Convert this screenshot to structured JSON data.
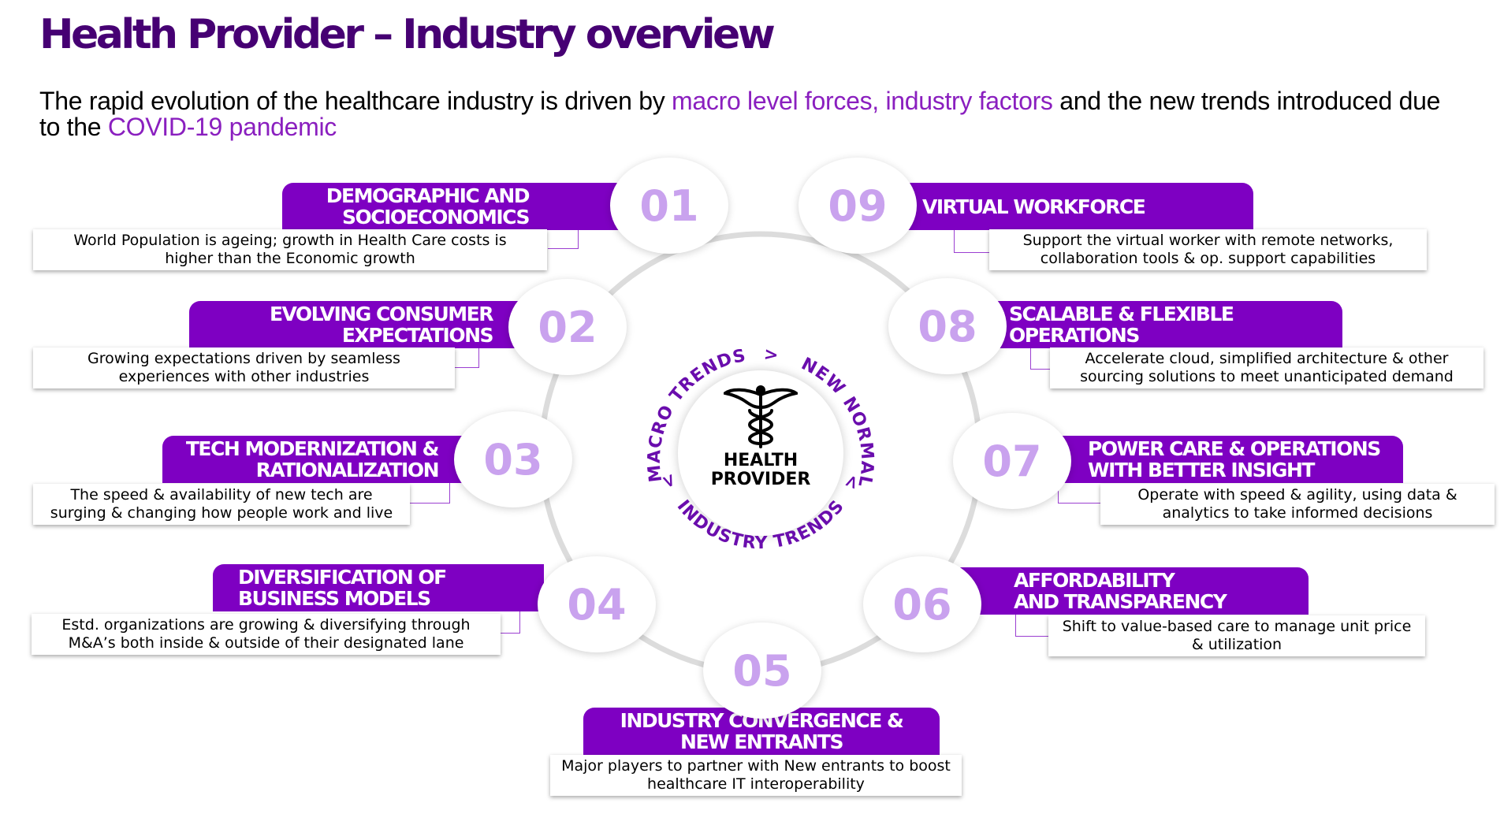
{
  "title": "Health Provider – Industry overview",
  "subtitle": {
    "part1": "The rapid evolution of the healthcare industry is driven by ",
    "hl1": "macro level forces, industry factors",
    "part2": " and the new trends introduced due to the ",
    "hl2": "COVID-19 pandemic"
  },
  "center": {
    "line1": "HEALTH",
    "line2": "PROVIDER",
    "arc_macro": "MACRO TRENDS",
    "arc_new": "NEW NORMAL TRENDS",
    "arc_industry": "INDUSTRY TRENDS",
    "arrow": ">"
  },
  "colors": {
    "brand": "#460073",
    "tab": "#7e00c2",
    "number": "#c9a2ee",
    "accent": "#8a1fbf"
  },
  "items": [
    {
      "num": "01",
      "title1": "DEMOGRAPHIC AND",
      "title2": "SOCIOECONOMICS",
      "desc1": "World Population is ageing; growth in Health Care costs is",
      "desc2": "higher than the Economic growth"
    },
    {
      "num": "02",
      "title1": "EVOLVING CONSUMER",
      "title2": "EXPECTATIONS",
      "desc1": "Growing expectations driven by seamless",
      "desc2": "experiences with other industries"
    },
    {
      "num": "03",
      "title1": "TECH MODERNIZATION &",
      "title2": "RATIONALIZATION",
      "desc1": "The speed & availability of new tech are",
      "desc2": "surging & changing how people work and live"
    },
    {
      "num": "04",
      "title1": "DIVERSIFICATION OF",
      "title2": "BUSINESS MODELS",
      "desc1": "Estd. organizations are growing & diversifying through",
      "desc2": "M&A’s both inside & outside of their designated lane"
    },
    {
      "num": "05",
      "title1": "INDUSTRY CONVERGENCE &",
      "title2": "NEW ENTRANTS",
      "desc1": "Major players to partner with New entrants to boost",
      "desc2": "healthcare IT interoperability"
    },
    {
      "num": "06",
      "title1": "AFFORDABILITY",
      "title2": "AND TRANSPARENCY",
      "desc1": "Shift to value-based care to manage unit price",
      "desc2": "& utilization"
    },
    {
      "num": "07",
      "title1": "POWER CARE & OPERATIONS",
      "title2": "WITH BETTER INSIGHT",
      "desc1": "Operate with speed & agility, using data &",
      "desc2": "analytics to take informed decisions"
    },
    {
      "num": "08",
      "title1": "SCALABLE & FLEXIBLE",
      "title2": "OPERATIONS",
      "desc1": "Accelerate cloud, simplified architecture & other",
      "desc2": "sourcing solutions to meet unanticipated demand"
    },
    {
      "num": "09",
      "title1": "VIRTUAL WORKFORCE",
      "title2": "",
      "desc1": "Support the virtual worker with remote networks,",
      "desc2": "collaboration tools & op. support capabilities"
    }
  ]
}
